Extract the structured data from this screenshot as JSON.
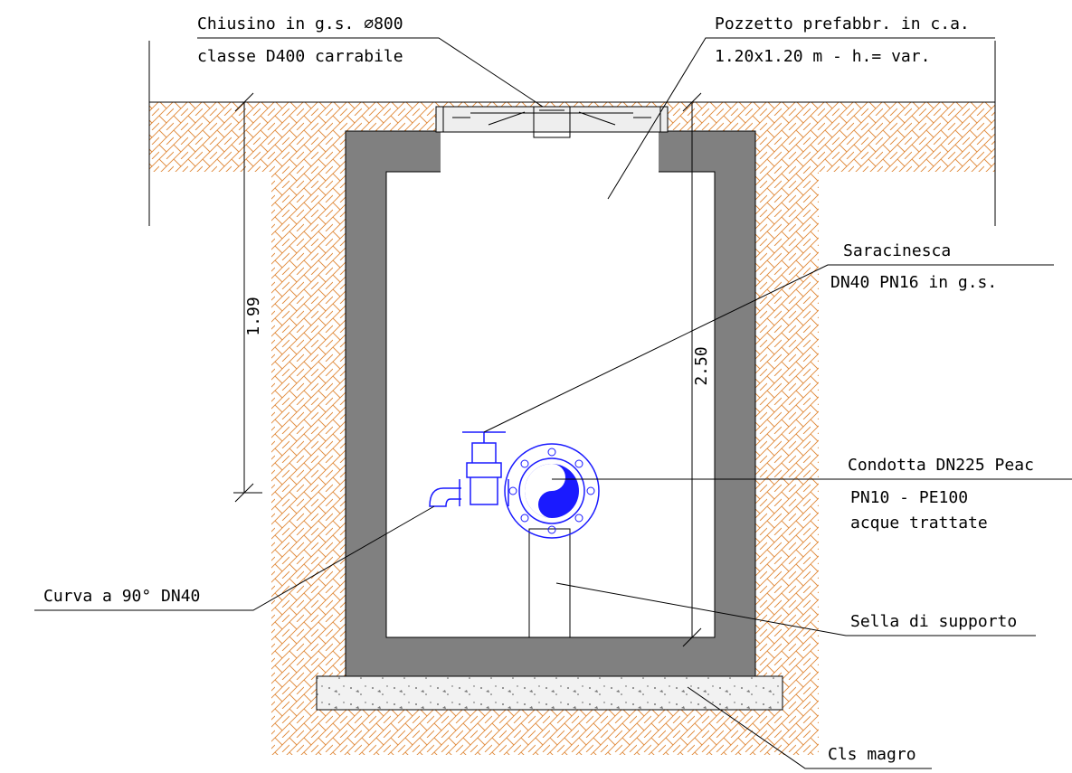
{
  "labels": {
    "cover_1": "Chiusino in g.s. ∅800",
    "cover_2": "classe D400 carrabile",
    "well_1": "Pozzetto prefabbr. in c.a.",
    "well_2": "1.20x1.20 m - h.= var.",
    "valve_1": "Saracinesca",
    "valve_2": "DN40 PN16 in g.s.",
    "pipe_1": "Condotta DN225 Peac",
    "pipe_2": "PN10 - PE100",
    "pipe_3": "acque trattate",
    "bend": "Curva a 90° DN40",
    "support": "Sella di supporto",
    "base": "Cls magro"
  },
  "dimensions": [
    "1.99",
    "2.50"
  ]
}
